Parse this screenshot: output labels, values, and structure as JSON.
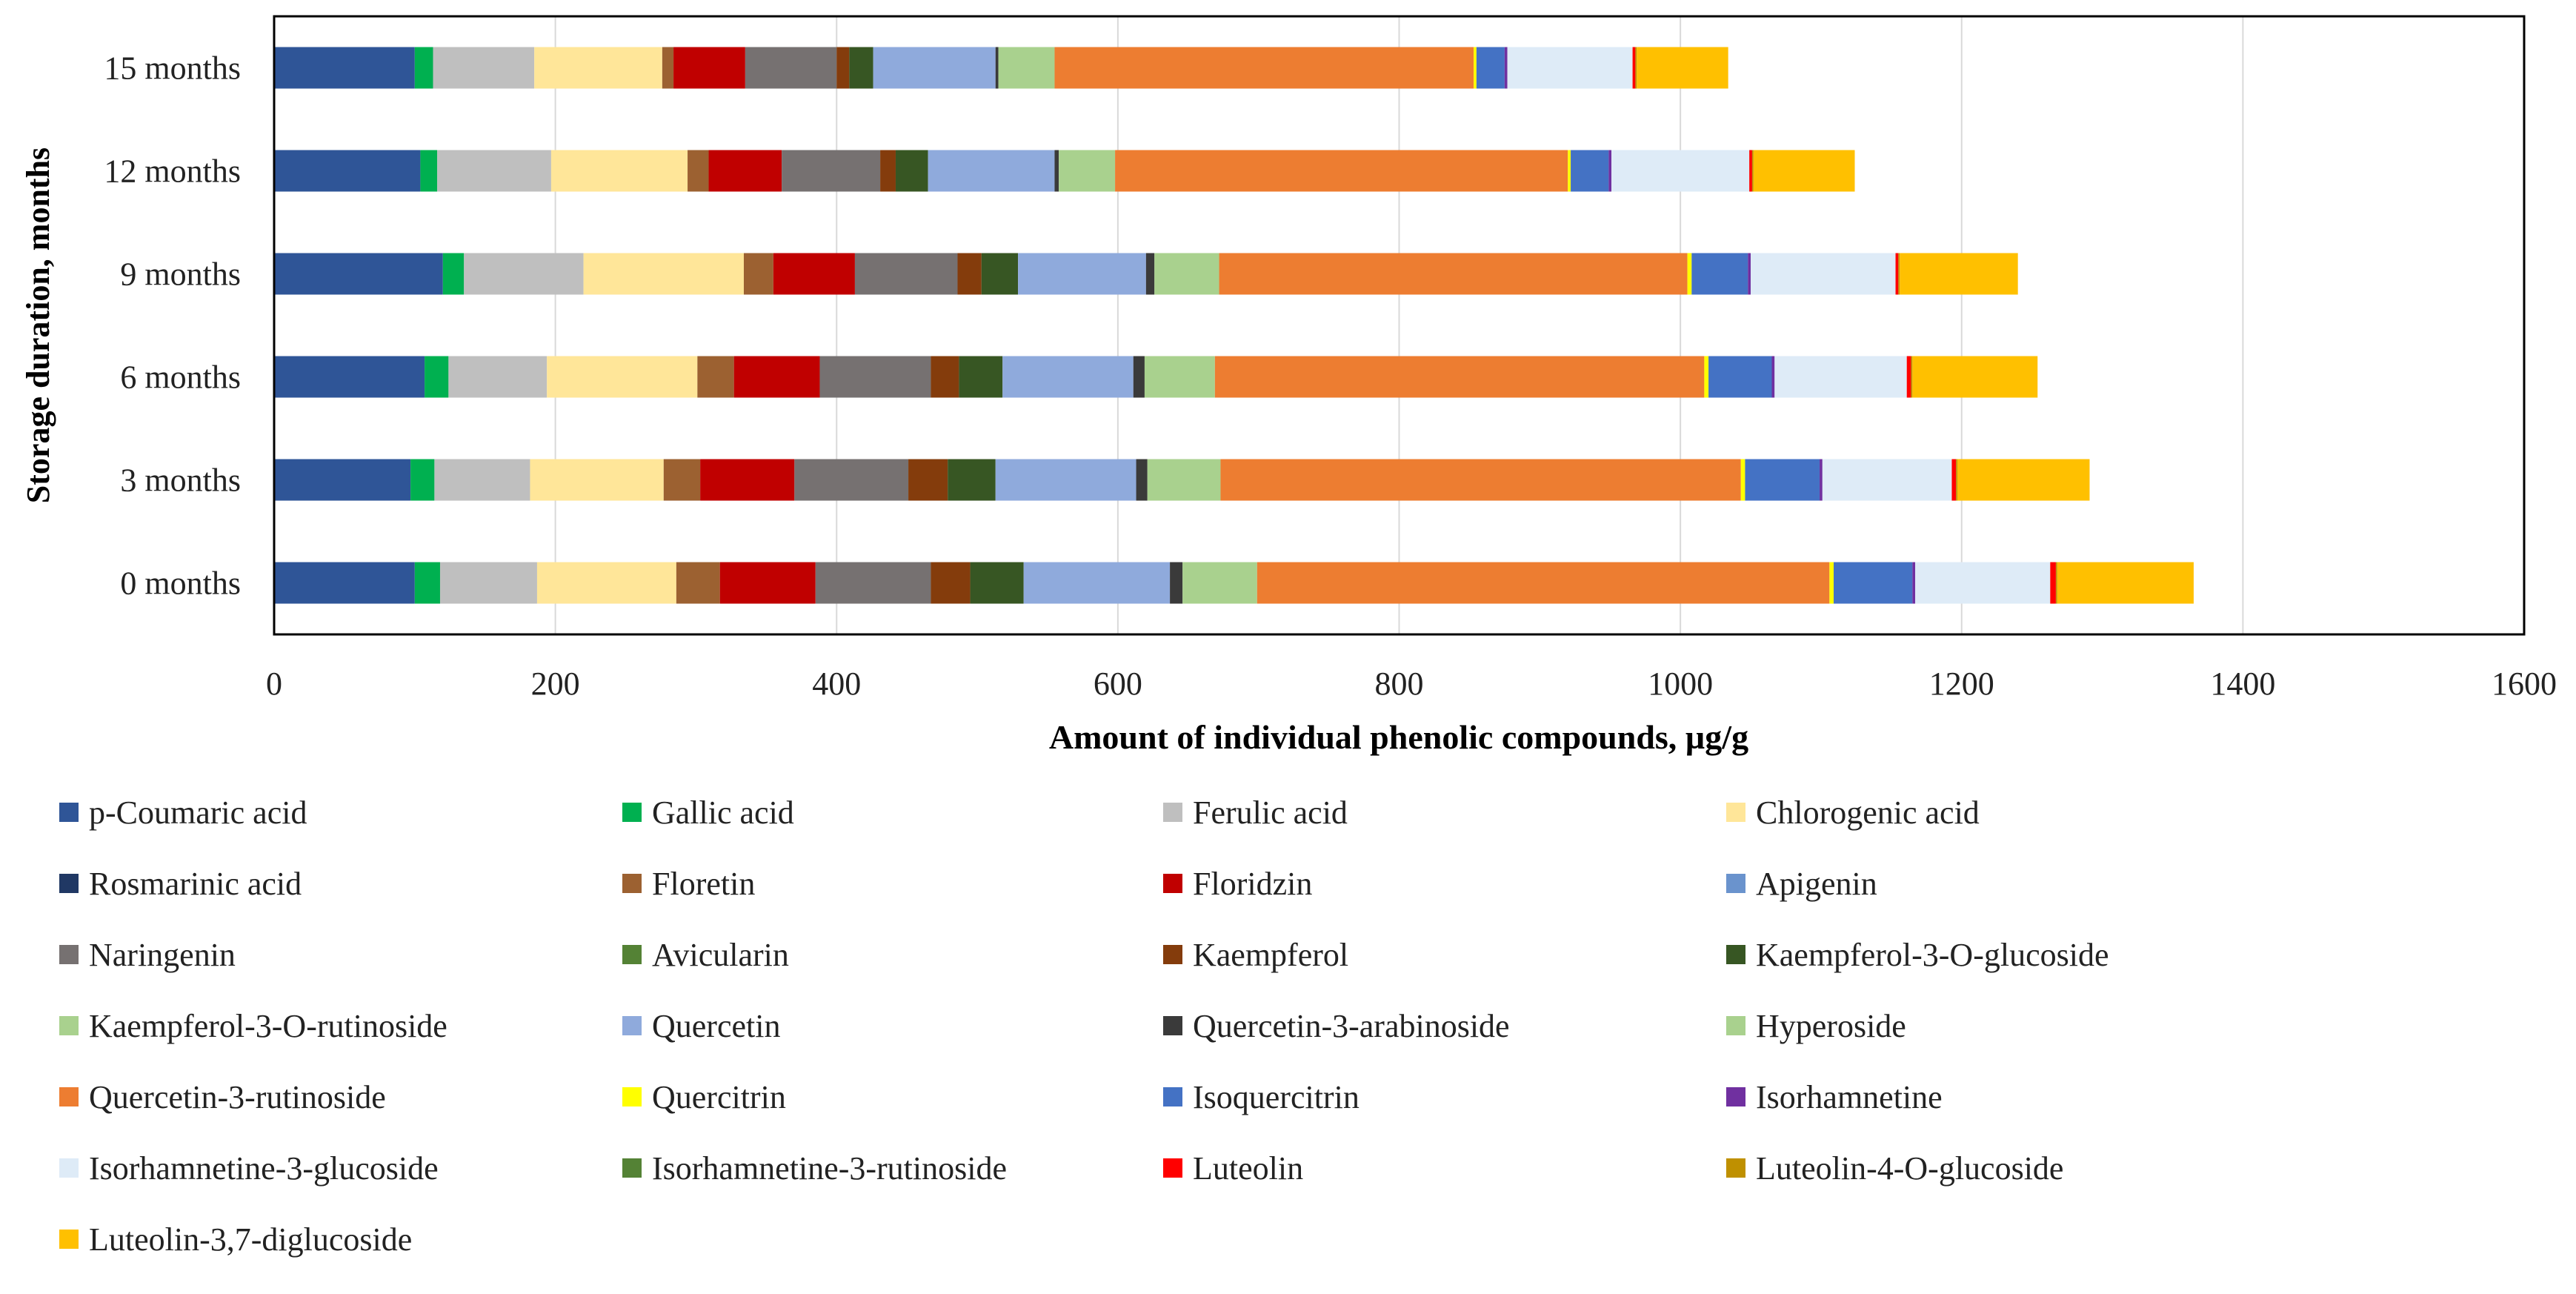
{
  "chart_data": {
    "type": "stacked-bar-horizontal",
    "title": "",
    "xlabel": "Amount of individual phenolic compounds, µg/g",
    "ylabel": "Storage duration,   months",
    "xlim": [
      0,
      1600
    ],
    "xticks": [
      "0",
      "200",
      "400",
      "600",
      "800",
      "1000",
      "1200",
      "1400",
      "1600"
    ],
    "grid": "vertical",
    "legend_position": "bottom",
    "categories": [
      "0 months",
      "3 months",
      "6 months",
      "9 months",
      "12 months",
      "15 months"
    ],
    "series": [
      {
        "name": "p-Coumaric acid",
        "color": "#2F5597",
        "values": [
          100,
          97,
          107,
          120,
          104,
          100
        ]
      },
      {
        "name": "Gallic acid",
        "color": "#00B050",
        "values": [
          18,
          17,
          17,
          15,
          12,
          13
        ]
      },
      {
        "name": "Ferulic acid",
        "color": "#BFBFBF",
        "values": [
          69,
          68,
          70,
          85,
          81,
          72
        ]
      },
      {
        "name": "Chlorogenic acid",
        "color": "#FFE699",
        "values": [
          99,
          95,
          107,
          114,
          97,
          91
        ]
      },
      {
        "name": "Rosmarinic acid",
        "color": "#203864",
        "values": [
          0,
          0,
          0,
          0,
          0,
          0
        ]
      },
      {
        "name": "Floretin",
        "color": "#9C6131",
        "values": [
          31,
          26,
          26,
          21,
          15,
          8
        ]
      },
      {
        "name": "Floridzin",
        "color": "#C00000",
        "values": [
          68,
          67,
          61,
          58,
          52,
          51
        ]
      },
      {
        "name": "Apigenin",
        "color": "#6A93CD",
        "values": [
          0,
          0,
          0,
          0,
          0,
          0
        ]
      },
      {
        "name": "Naringenin",
        "color": "#767171",
        "values": [
          82,
          81,
          79,
          73,
          70,
          65
        ]
      },
      {
        "name": "Avicularin",
        "color": "#548235",
        "values": [
          0,
          0,
          0,
          0,
          0,
          0
        ]
      },
      {
        "name": "Kaempferol",
        "color": "#843C0C",
        "values": [
          28,
          28,
          20,
          17,
          11,
          9
        ]
      },
      {
        "name": "Kaempferol-3-O-glucoside",
        "color": "#375623",
        "values": [
          38,
          34,
          31,
          26,
          23,
          17
        ]
      },
      {
        "name": "Kaempferol-3-O-rutinoside",
        "color": "#A9D18E",
        "values": [
          0,
          0,
          0,
          0,
          0,
          0
        ]
      },
      {
        "name": "Quercetin",
        "color": "#8FAADC",
        "values": [
          104,
          100,
          93,
          91,
          90,
          87
        ]
      },
      {
        "name": "Quercetin-3-arabinoside",
        "color": "#3A3A3A",
        "values": [
          9,
          8,
          8,
          6,
          3,
          2
        ]
      },
      {
        "name": "Hyperoside",
        "color": "#A9D18E",
        "values": [
          53,
          52,
          50,
          46,
          40,
          40
        ]
      },
      {
        "name": "Quercetin-3-rutinoside",
        "color": "#ED7D31",
        "values": [
          407,
          370,
          348,
          333,
          322,
          298
        ]
      },
      {
        "name": "Quercitrin",
        "color": "#FFFF00",
        "values": [
          3,
          3,
          3,
          3,
          2,
          2
        ]
      },
      {
        "name": "Isoquercitrin",
        "color": "#4472C4",
        "values": [
          56,
          53,
          45,
          40,
          27,
          20
        ]
      },
      {
        "name": "Isorhamnetine",
        "color": "#7030A0",
        "values": [
          2,
          2,
          2,
          2,
          2,
          2
        ]
      },
      {
        "name": "Isorhamnetine-3-glucoside",
        "color": "#DEEBF7",
        "values": [
          96,
          92,
          94,
          103,
          98,
          89
        ]
      },
      {
        "name": "Isorhamnetine-3-rutinoside",
        "color": "#548235",
        "values": [
          0,
          0,
          0,
          0,
          0,
          0
        ]
      },
      {
        "name": "Luteolin",
        "color": "#FF0000",
        "values": [
          4,
          3,
          3,
          2,
          2,
          2
        ]
      },
      {
        "name": "Luteolin-4-O-glucoside",
        "color": "#BF9000",
        "values": [
          1,
          1,
          1,
          1,
          1,
          1
        ]
      },
      {
        "name": "Luteolin-3,7-diglucoside",
        "color": "#FFC000",
        "values": [
          97,
          94,
          89,
          84,
          72,
          65
        ]
      }
    ]
  }
}
